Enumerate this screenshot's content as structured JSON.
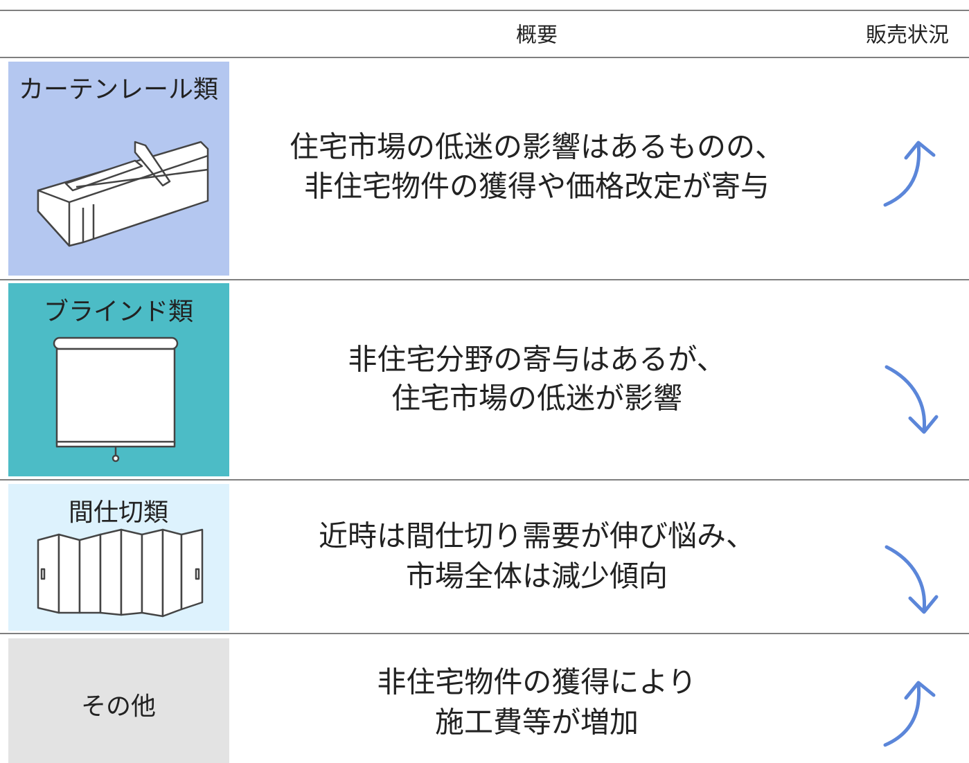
{
  "header": {
    "columns": [
      "概要",
      "販売状況"
    ]
  },
  "rows": [
    {
      "category": "カーテンレール類",
      "summary": [
        "住宅市場の低迷の影響はあるものの、",
        "非住宅物件の獲得や価格改定が寄与"
      ]
    },
    {
      "category": "ブラインド類",
      "summary": [
        "非住宅分野の寄与はあるが、",
        "住宅市場の低迷が影響"
      ]
    },
    {
      "category": "間仕切類",
      "summary": [
        "近時は間仕切り需要が伸び悩み、",
        "市場全体は減少傾向"
      ]
    },
    {
      "category": "その他",
      "summary": [
        "非住宅物件の獲得により",
        "施工費等が増加"
      ]
    }
  ]
}
